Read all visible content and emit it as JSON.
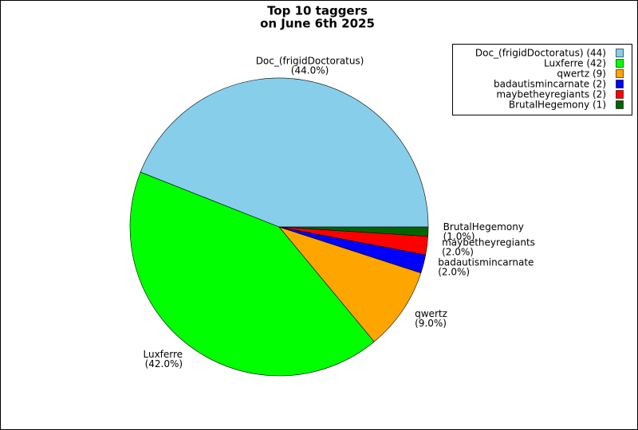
{
  "chart_data": {
    "type": "pie",
    "title": [
      "Top 10 taggers",
      "on June 6th 2025"
    ],
    "categories": [
      "Doc_(frigidDoctoratus)",
      "Luxferre",
      "qwertz",
      "badautismincarnate",
      "maybetheyregiants",
      "BrutalHegemony"
    ],
    "values": [
      44,
      42,
      9,
      2,
      2,
      1
    ],
    "value_labels": [
      "(44.0%)",
      "(42.0%)",
      "(9.0%)",
      "(2.0%)",
      "(2.0%)",
      "(1.0%)"
    ],
    "colors": [
      "#87ceeb",
      "#00ff00",
      "#ffa500",
      "#0000ff",
      "#ff0000",
      "#006400"
    ],
    "legend_labels": [
      "Doc_(frigidDoctoratus) (44)",
      "Luxferre (42)",
      "qwertz (9)",
      "badautismincarnate (2)",
      "maybetheyregiants (2)",
      "BrutalHegemony (1)"
    ],
    "legend": "upper right"
  }
}
